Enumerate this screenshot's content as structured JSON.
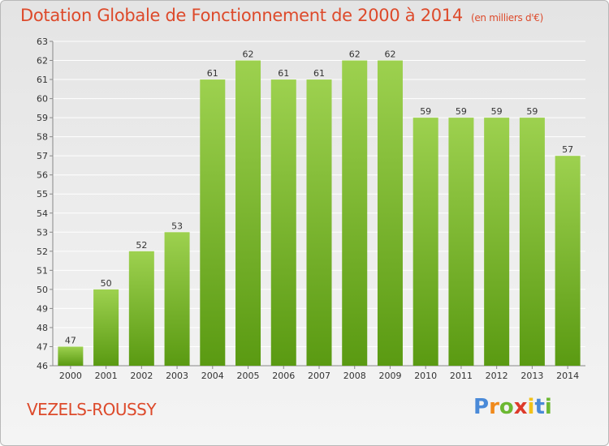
{
  "chart_data": {
    "type": "bar",
    "title": "Dotation Globale de Fonctionnement de 2000 à 2014",
    "unit_note": "(en milliers d'€)",
    "categories": [
      "2000",
      "2001",
      "2002",
      "2003",
      "2004",
      "2005",
      "2006",
      "2007",
      "2008",
      "2009",
      "2010",
      "2011",
      "2012",
      "2013",
      "2014"
    ],
    "values": [
      47,
      50,
      52,
      53,
      61,
      62,
      61,
      61,
      62,
      62,
      59,
      59,
      59,
      59,
      57
    ],
    "ylim": [
      46,
      63
    ],
    "yticks": [
      46,
      47,
      48,
      49,
      50,
      51,
      52,
      53,
      54,
      55,
      56,
      57,
      58,
      59,
      60,
      61,
      62,
      63
    ],
    "grid": true,
    "bar_color_top": "#9dd14f",
    "bar_color_bottom": "#5a9a12"
  },
  "commune": "VEZELS-ROUSSY",
  "logo": {
    "letters": [
      "P",
      "r",
      "o",
      "x",
      "i",
      "t",
      "i"
    ],
    "colors": [
      "#4a8ad8",
      "#f08a1c",
      "#6cb832",
      "#dd3a2a",
      "#f2c21a",
      "#4a8ad8",
      "#6cb832"
    ]
  },
  "colors": {
    "title": "#dd4a2b",
    "grid": "#ffffff"
  }
}
